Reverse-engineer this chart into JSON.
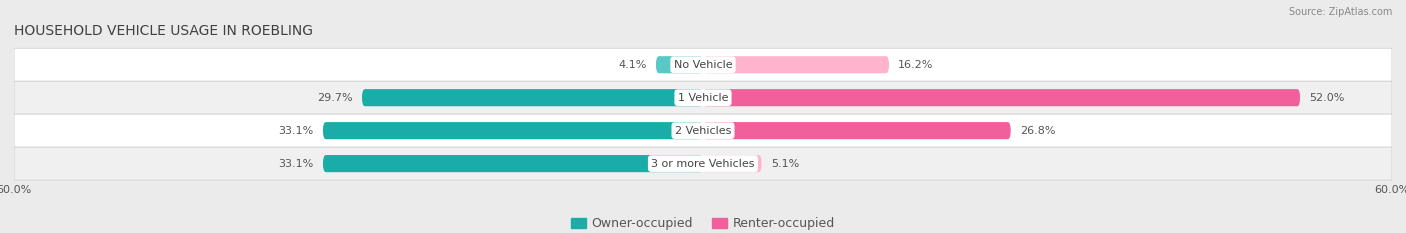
{
  "title": "HOUSEHOLD VEHICLE USAGE IN ROEBLING",
  "source": "Source: ZipAtlas.com",
  "categories": [
    "No Vehicle",
    "1 Vehicle",
    "2 Vehicles",
    "3 or more Vehicles"
  ],
  "owner_values": [
    4.1,
    29.7,
    33.1,
    33.1
  ],
  "renter_values": [
    16.2,
    52.0,
    26.8,
    5.1
  ],
  "owner_color_bright": "#5BC8C8",
  "owner_color_dark": "#1AADA8",
  "renter_color_bright": "#FFB3CC",
  "renter_color_dark": "#F0609A",
  "owner_label": "Owner-occupied",
  "renter_label": "Renter-occupied",
  "xlim": [
    -60,
    60
  ],
  "bar_height": 0.52,
  "bg_color": "#ebebeb",
  "row_colors": [
    "#ffffff",
    "#f0f0f0"
  ],
  "label_color": "#555555",
  "title_color": "#404040",
  "font_size_title": 10,
  "font_size_labels": 8,
  "font_size_axis": 8,
  "font_size_legend": 9,
  "font_size_center": 8
}
